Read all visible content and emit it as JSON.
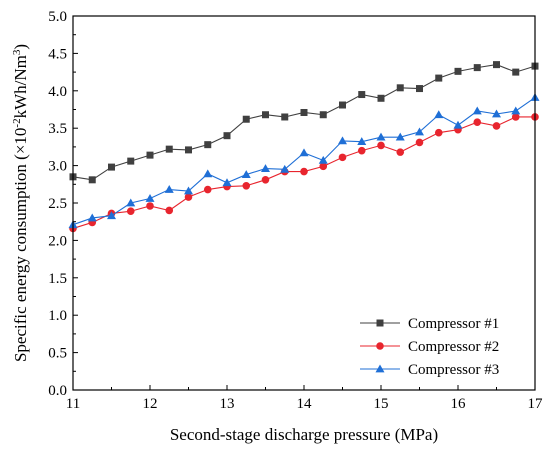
{
  "chart_data": {
    "type": "line",
    "title": "",
    "xlabel": "Second-stage discharge pressure (MPa)",
    "ylabel": {
      "prefix": "Specific energy consumption (×10",
      "exp1": "-2",
      "middle": "kWh/Nm",
      "exp2": "3",
      "suffix": ")"
    },
    "xlim": [
      11,
      17
    ],
    "ylim": [
      0.0,
      5.0
    ],
    "xticks": [
      "11",
      "12",
      "13",
      "14",
      "15",
      "16",
      "17"
    ],
    "yticks": [
      "0.0",
      "0.5",
      "1.0",
      "1.5",
      "2.0",
      "2.5",
      "3.0",
      "3.5",
      "4.0",
      "4.5",
      "5.0"
    ],
    "legend_position": "bottom-right",
    "x": [
      11.0,
      11.25,
      11.5,
      11.75,
      12.0,
      12.25,
      12.5,
      12.75,
      13.0,
      13.25,
      13.5,
      13.75,
      14.0,
      14.25,
      14.5,
      14.75,
      15.0,
      15.25,
      15.5,
      15.75,
      16.0,
      16.25,
      16.5,
      16.75,
      17.0
    ],
    "series": [
      {
        "name": "Compressor #1",
        "color": "#404040",
        "marker": "square",
        "values": [
          2.85,
          2.81,
          2.98,
          3.06,
          3.14,
          3.22,
          3.21,
          3.28,
          3.4,
          3.62,
          3.68,
          3.65,
          3.71,
          3.68,
          3.81,
          3.95,
          3.9,
          4.04,
          4.03,
          4.17,
          4.26,
          4.31,
          4.35,
          4.25,
          4.33
        ]
      },
      {
        "name": "Compressor #2",
        "color": "#e8252e",
        "marker": "circle",
        "values": [
          2.16,
          2.24,
          2.36,
          2.39,
          2.46,
          2.4,
          2.58,
          2.68,
          2.72,
          2.73,
          2.81,
          2.92,
          2.92,
          2.99,
          3.11,
          3.2,
          3.27,
          3.18,
          3.31,
          3.44,
          3.48,
          3.58,
          3.53,
          3.65,
          3.65
        ]
      },
      {
        "name": "Compressor #3",
        "color": "#1f6fd6",
        "marker": "triangle",
        "values": [
          2.21,
          2.3,
          2.33,
          2.5,
          2.56,
          2.68,
          2.66,
          2.89,
          2.77,
          2.88,
          2.96,
          2.95,
          3.17,
          3.07,
          3.33,
          3.32,
          3.38,
          3.38,
          3.45,
          3.68,
          3.54,
          3.73,
          3.69,
          3.73,
          3.91
        ]
      }
    ]
  }
}
